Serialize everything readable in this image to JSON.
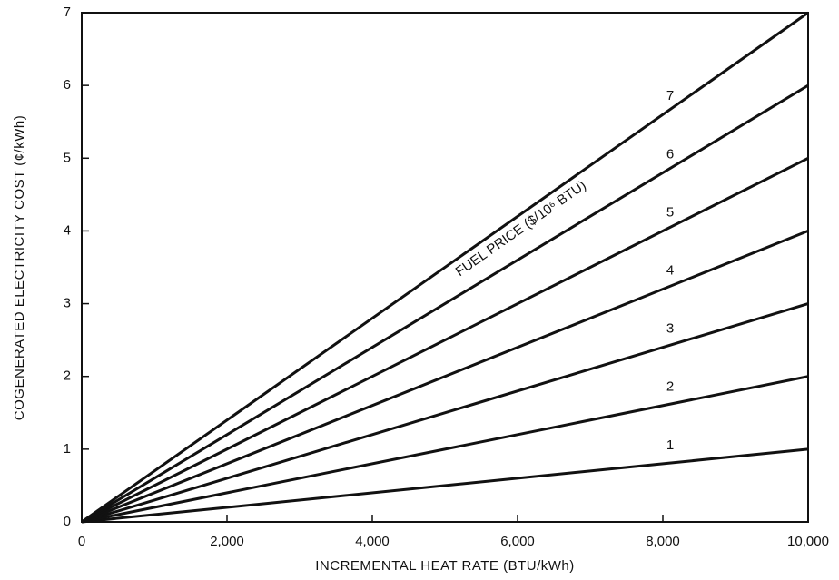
{
  "chart_data": {
    "type": "line",
    "x_label": "INCREMENTAL HEAT RATE (BTU/kWh)",
    "y_label": "COGENERATED ELECTRICITY COST (¢/kWh)",
    "annotation": "FUEL PRICE ($/10⁶ BTU)",
    "x": [
      0,
      10000
    ],
    "series": [
      {
        "name": "1",
        "color": "#111111",
        "values": [
          0,
          1
        ]
      },
      {
        "name": "2",
        "color": "#111111",
        "values": [
          0,
          2
        ]
      },
      {
        "name": "3",
        "color": "#111111",
        "values": [
          0,
          3
        ]
      },
      {
        "name": "4",
        "color": "#111111",
        "values": [
          0,
          4
        ]
      },
      {
        "name": "5",
        "color": "#111111",
        "values": [
          0,
          5
        ]
      },
      {
        "name": "6",
        "color": "#111111",
        "values": [
          0,
          6
        ]
      },
      {
        "name": "7",
        "color": "#111111",
        "values": [
          0,
          7
        ]
      }
    ],
    "xlim": [
      0,
      10000
    ],
    "xticks": [
      0,
      {
        "value": 2000,
        "label": "2,000"
      },
      {
        "value": 4000,
        "label": "4,000"
      },
      {
        "value": 6000,
        "label": "6,000"
      },
      {
        "value": 8000,
        "label": "8,000"
      },
      {
        "value": 10000,
        "label": "10,000"
      }
    ],
    "ylim": [
      0,
      7
    ],
    "yticks": [
      0,
      1,
      2,
      3,
      4,
      5,
      6,
      7
    ],
    "grid": false
  }
}
